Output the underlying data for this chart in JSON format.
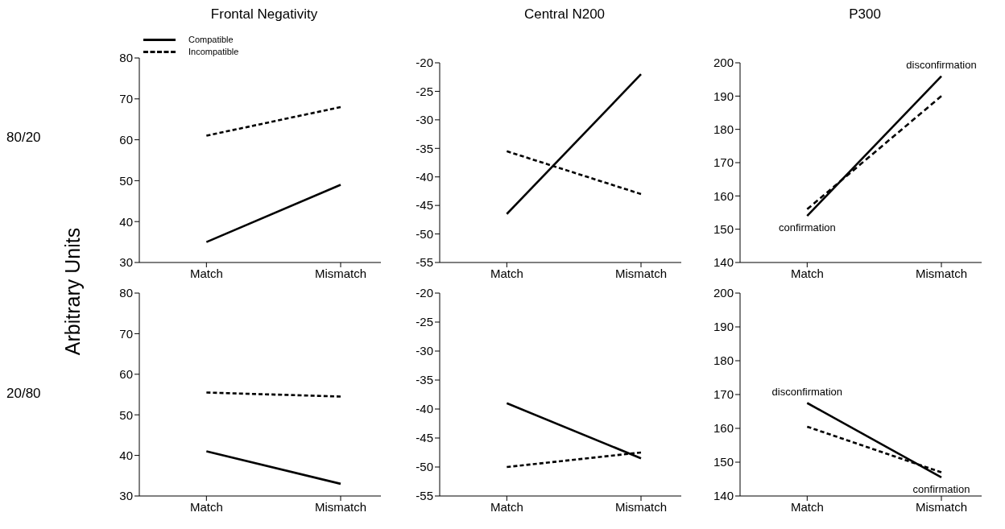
{
  "chart_data": [
    {
      "type": "line",
      "title": "Frontal Negativity",
      "ylabel": "Arbitrary Units",
      "subtitle": "80/20",
      "categories": [
        "Match",
        "Mismatch"
      ],
      "ylim": [
        30,
        80
      ],
      "yticks": [
        30,
        40,
        50,
        60,
        70,
        80
      ],
      "legend": "top left",
      "series": [
        {
          "name": "Compatible",
          "color": "#000000",
          "line_style": "solid",
          "values": [
            35,
            49
          ]
        },
        {
          "name": "Incompatible",
          "color": "#000000",
          "line_style": "dashed",
          "values": [
            61,
            68
          ]
        }
      ]
    },
    {
      "type": "line",
      "title": "Central N200",
      "categories": [
        "Match",
        "Mismatch"
      ],
      "ylim": [
        -55,
        -20
      ],
      "yticks": [
        -55,
        -50,
        -45,
        -40,
        -35,
        -30,
        -25,
        -20
      ],
      "series": [
        {
          "color": "#000000",
          "line_style": "solid",
          "values": [
            -46.5,
            -22
          ]
        },
        {
          "color": "#000000",
          "line_style": "dashed",
          "values": [
            -35.5,
            -43
          ]
        }
      ]
    },
    {
      "type": "line",
      "title": "P300",
      "categories": [
        "Match",
        "Mismatch"
      ],
      "ylim": [
        140,
        200
      ],
      "yticks": [
        140,
        150,
        160,
        170,
        180,
        190,
        200
      ],
      "annotations": [
        "disconfirmation",
        "confirmation"
      ],
      "series": [
        {
          "color": "#000000",
          "line_style": "solid",
          "values": [
            154,
            196
          ]
        },
        {
          "color": "#000000",
          "line_style": "dashed",
          "values": [
            156,
            190
          ]
        }
      ]
    },
    {
      "type": "line",
      "subtitle": "20/80",
      "categories": [
        "Match",
        "Mismatch"
      ],
      "ylim": [
        30,
        80
      ],
      "yticks": [
        30,
        40,
        50,
        60,
        70,
        80
      ],
      "series": [
        {
          "color": "#000000",
          "line_style": "solid",
          "values": [
            41,
            33
          ]
        },
        {
          "color": "#000000",
          "line_style": "dashed",
          "values": [
            55.5,
            54.5
          ]
        }
      ]
    },
    {
      "type": "line",
      "categories": [
        "Match",
        "Mismatch"
      ],
      "ylim": [
        -55,
        -20
      ],
      "yticks": [
        -55,
        -50,
        -45,
        -40,
        -35,
        -30,
        -25,
        -20
      ],
      "series": [
        {
          "color": "#000000",
          "line_style": "solid",
          "values": [
            -39,
            -48.5
          ]
        },
        {
          "color": "#000000",
          "line_style": "dashed",
          "values": [
            -50,
            -47.5
          ]
        }
      ]
    },
    {
      "type": "line",
      "categories": [
        "Match",
        "Mismatch"
      ],
      "ylim": [
        140,
        200
      ],
      "yticks": [
        140,
        150,
        160,
        170,
        180,
        190,
        200
      ],
      "annotations": [
        "disconfirmation",
        "confirmation"
      ],
      "series": [
        {
          "color": "#000000",
          "line_style": "solid",
          "values": [
            167.5,
            145.5
          ]
        },
        {
          "color": "#000000",
          "line_style": "dashed",
          "values": [
            160.5,
            147
          ]
        }
      ]
    }
  ]
}
